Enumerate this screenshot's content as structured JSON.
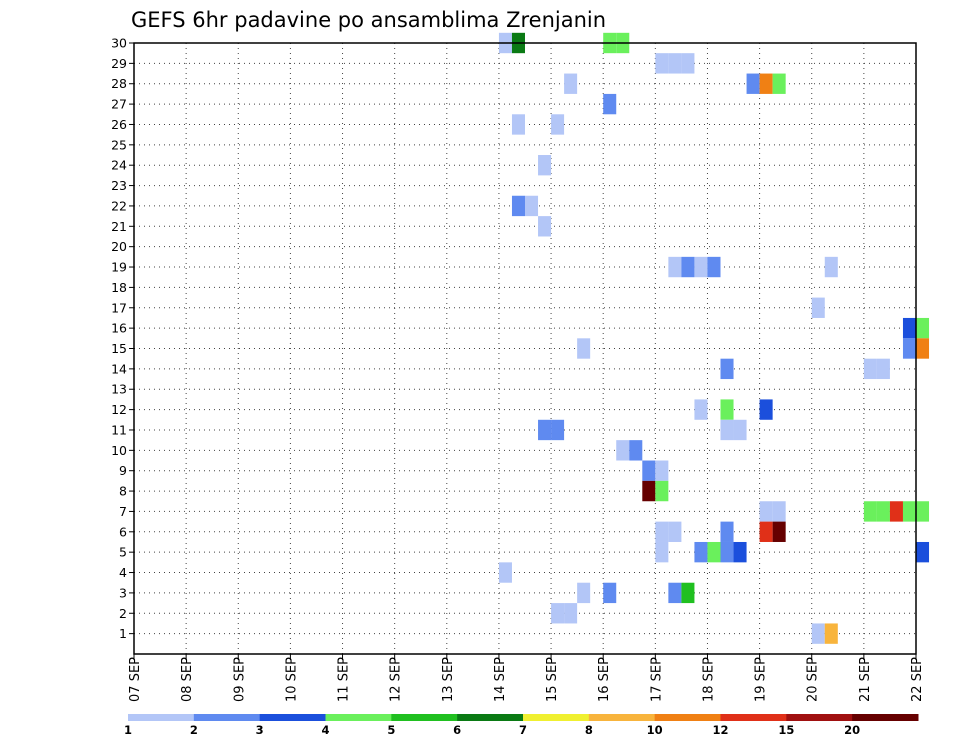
{
  "chart_data": {
    "type": "heatmap",
    "title": "GEFS 6hr padavine po ansamblima Zrenjanin",
    "xlabel": "",
    "ylabel": "",
    "y_ticks": [
      1,
      2,
      3,
      4,
      5,
      6,
      7,
      8,
      9,
      10,
      11,
      12,
      13,
      14,
      15,
      16,
      17,
      18,
      19,
      20,
      21,
      22,
      23,
      24,
      25,
      26,
      27,
      28,
      29,
      30
    ],
    "y_range": [
      0,
      30
    ],
    "x_ticks": [
      "07 SEP",
      "08 SEP",
      "09 SEP",
      "10 SEP",
      "11 SEP",
      "12 SEP",
      "13 SEP",
      "14 SEP",
      "15 SEP",
      "16 SEP",
      "17 SEP",
      "18 SEP",
      "19 SEP",
      "20 SEP",
      "21 SEP",
      "22 SEP"
    ],
    "x_range_days": [
      0,
      15
    ],
    "grid": true,
    "legend": {
      "placement": "bottom",
      "labels": [
        "1",
        "2",
        "3",
        "4",
        "5",
        "6",
        "7",
        "8",
        "10",
        "12",
        "15",
        "20"
      ],
      "colors": [
        "#b3c6f7",
        "#5f8af0",
        "#1b4fdc",
        "#6af05c",
        "#20c020",
        "#0a7a14",
        "#f0f030",
        "#f8b43c",
        "#f08014",
        "#e03018",
        "#a01010",
        "#660000"
      ]
    },
    "values_note": "x = forecast time in days after 07 SEP (6-hour steps), y = ensemble member, v = 6-hour precipitation (mm)",
    "cells": [
      {
        "x": 7.0,
        "y": 30,
        "v": 1.5
      },
      {
        "x": 7.25,
        "y": 30,
        "v": 6.5
      },
      {
        "x": 9.0,
        "y": 30,
        "v": 4.5
      },
      {
        "x": 9.25,
        "y": 30,
        "v": 4.5
      },
      {
        "x": 10.0,
        "y": 29,
        "v": 1.5
      },
      {
        "x": 10.25,
        "y": 29,
        "v": 1.5
      },
      {
        "x": 10.5,
        "y": 29,
        "v": 1.5
      },
      {
        "x": 8.25,
        "y": 28,
        "v": 1.5
      },
      {
        "x": 11.75,
        "y": 28,
        "v": 2.5
      },
      {
        "x": 12.0,
        "y": 28,
        "v": 11
      },
      {
        "x": 12.25,
        "y": 28,
        "v": 4.5
      },
      {
        "x": 9.0,
        "y": 27,
        "v": 2.5
      },
      {
        "x": 7.25,
        "y": 26,
        "v": 1.5
      },
      {
        "x": 8.0,
        "y": 26,
        "v": 1.5
      },
      {
        "x": 7.75,
        "y": 24,
        "v": 1.5
      },
      {
        "x": 7.25,
        "y": 22,
        "v": 2.5
      },
      {
        "x": 7.5,
        "y": 22,
        "v": 1.5
      },
      {
        "x": 7.75,
        "y": 21,
        "v": 1.5
      },
      {
        "x": 10.25,
        "y": 19,
        "v": 1.5
      },
      {
        "x": 10.5,
        "y": 19,
        "v": 2.5
      },
      {
        "x": 10.75,
        "y": 19,
        "v": 1.5
      },
      {
        "x": 11.0,
        "y": 19,
        "v": 2.5
      },
      {
        "x": 13.25,
        "y": 19,
        "v": 1.5
      },
      {
        "x": 13.0,
        "y": 17,
        "v": 1.5
      },
      {
        "x": 14.75,
        "y": 16,
        "v": 3.5
      },
      {
        "x": 15.0,
        "y": 16,
        "v": 4.5
      },
      {
        "x": 8.5,
        "y": 15,
        "v": 1.5
      },
      {
        "x": 14.75,
        "y": 15,
        "v": 2.5
      },
      {
        "x": 15.0,
        "y": 15,
        "v": 11
      },
      {
        "x": 11.25,
        "y": 14,
        "v": 2.5
      },
      {
        "x": 14.0,
        "y": 14,
        "v": 1.5
      },
      {
        "x": 14.25,
        "y": 14,
        "v": 1.5
      },
      {
        "x": 10.75,
        "y": 12,
        "v": 1.5
      },
      {
        "x": 11.25,
        "y": 12,
        "v": 4.5
      },
      {
        "x": 12.0,
        "y": 12,
        "v": 3.5
      },
      {
        "x": 7.75,
        "y": 11,
        "v": 2.5
      },
      {
        "x": 8.0,
        "y": 11,
        "v": 2.5
      },
      {
        "x": 11.25,
        "y": 11,
        "v": 1.5
      },
      {
        "x": 11.5,
        "y": 11,
        "v": 1.5
      },
      {
        "x": 9.25,
        "y": 10,
        "v": 1.5
      },
      {
        "x": 9.5,
        "y": 10,
        "v": 2.5
      },
      {
        "x": 9.75,
        "y": 9,
        "v": 2.5
      },
      {
        "x": 10.0,
        "y": 9,
        "v": 1.5
      },
      {
        "x": 9.75,
        "y": 8,
        "v": 20
      },
      {
        "x": 10.0,
        "y": 8,
        "v": 4.5
      },
      {
        "x": 12.0,
        "y": 7,
        "v": 1.5
      },
      {
        "x": 12.25,
        "y": 7,
        "v": 1.5
      },
      {
        "x": 14.0,
        "y": 7,
        "v": 4.5
      },
      {
        "x": 14.25,
        "y": 7,
        "v": 4.5
      },
      {
        "x": 14.5,
        "y": 7,
        "v": 13
      },
      {
        "x": 14.75,
        "y": 7,
        "v": 4.5
      },
      {
        "x": 15.0,
        "y": 7,
        "v": 4.5
      },
      {
        "x": 10.0,
        "y": 6,
        "v": 1.5
      },
      {
        "x": 10.25,
        "y": 6,
        "v": 1.5
      },
      {
        "x": 11.25,
        "y": 6,
        "v": 2.5
      },
      {
        "x": 12.0,
        "y": 6,
        "v": 13
      },
      {
        "x": 12.25,
        "y": 6,
        "v": 20
      },
      {
        "x": 10.0,
        "y": 5,
        "v": 1.5
      },
      {
        "x": 10.75,
        "y": 5,
        "v": 2.5
      },
      {
        "x": 11.0,
        "y": 5,
        "v": 4.5
      },
      {
        "x": 11.25,
        "y": 5,
        "v": 2.5
      },
      {
        "x": 11.5,
        "y": 5,
        "v": 3.5
      },
      {
        "x": 15.0,
        "y": 5,
        "v": 3.5
      },
      {
        "x": 7.0,
        "y": 4,
        "v": 1.5
      },
      {
        "x": 8.5,
        "y": 3,
        "v": 1.5
      },
      {
        "x": 9.0,
        "y": 3,
        "v": 2.5
      },
      {
        "x": 10.25,
        "y": 3,
        "v": 2.5
      },
      {
        "x": 10.5,
        "y": 3,
        "v": 5.5
      },
      {
        "x": 8.0,
        "y": 2,
        "v": 1.5
      },
      {
        "x": 8.25,
        "y": 2,
        "v": 1.5
      },
      {
        "x": 13.0,
        "y": 1,
        "v": 1.5
      },
      {
        "x": 13.25,
        "y": 1,
        "v": 9
      }
    ]
  }
}
